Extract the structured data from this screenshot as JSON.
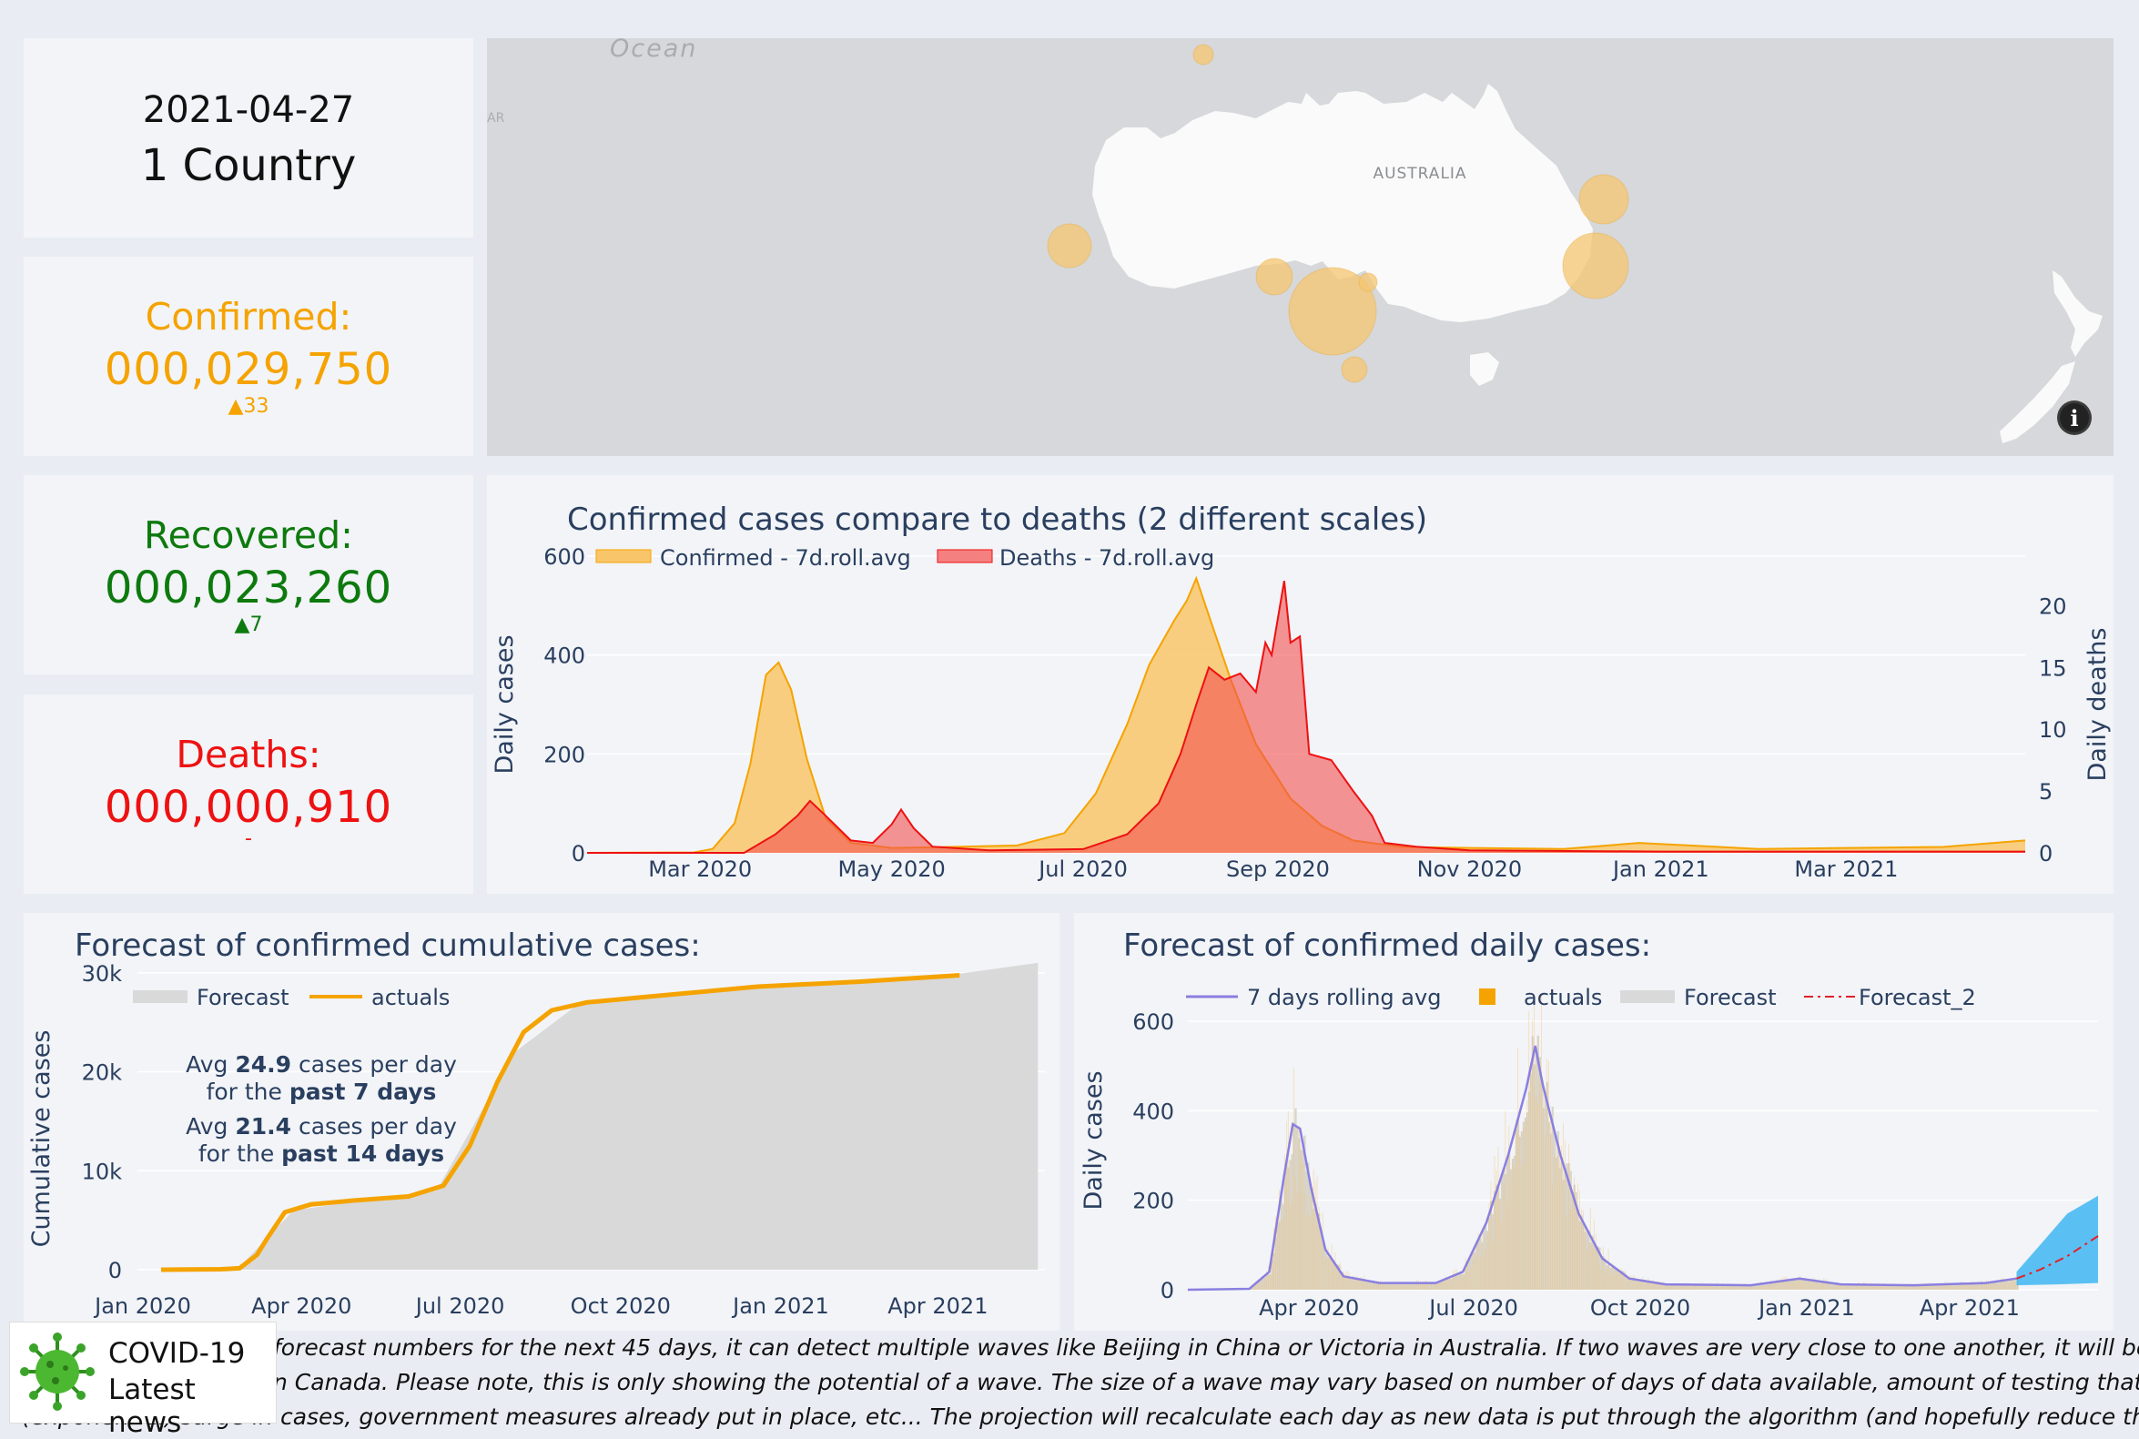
{
  "summary": {
    "date": "2021-04-27",
    "countries": "1 Country",
    "confirmed": {
      "label": "Confirmed:",
      "value": "000,029,750",
      "delta": "▲33"
    },
    "recovered": {
      "label": "Recovered:",
      "value": "000,023,260",
      "delta": "▲7"
    },
    "deaths": {
      "label": "Deaths:",
      "value": "000,000,910",
      "delta": "-"
    }
  },
  "map": {
    "ocean_label": "Ocean",
    "cut_label": "AR",
    "country_label": "AUSTRALIA",
    "info_icon": "info-icon",
    "colors": {
      "water": "#d6d8db",
      "land": "#fafafa",
      "bubble": "#f6c670"
    }
  },
  "chart_data": [
    {
      "type": "area",
      "title": "Confirmed cases compare to deaths (2 different scales)",
      "ylabel": "Daily cases",
      "y2label": "Daily deaths",
      "x_ticks": [
        "Mar 2020",
        "May 2020",
        "Jul 2020",
        "Sep 2020",
        "Nov 2020",
        "Jan 2021",
        "Mar 2021"
      ],
      "y_ticks": [
        "0",
        "200",
        "400",
        "600"
      ],
      "y2_ticks": [
        "0",
        "5",
        "10",
        "15",
        "20"
      ],
      "ylim": [
        0,
        600
      ],
      "y2lim": [
        0,
        24
      ],
      "legend_placement": "top-left",
      "series": [
        {
          "name": "Confirmed - 7d.roll.avg",
          "axis": "y",
          "color": "#f5a300",
          "points": [
            [
              "2020-01-25",
              0
            ],
            [
              "2020-02-28",
              1
            ],
            [
              "2020-03-05",
              8
            ],
            [
              "2020-03-12",
              60
            ],
            [
              "2020-03-17",
              180
            ],
            [
              "2020-03-22",
              360
            ],
            [
              "2020-03-26",
              385
            ],
            [
              "2020-03-30",
              330
            ],
            [
              "2020-04-04",
              190
            ],
            [
              "2020-04-10",
              70
            ],
            [
              "2020-04-18",
              20
            ],
            [
              "2020-05-01",
              10
            ],
            [
              "2020-05-20",
              12
            ],
            [
              "2020-06-10",
              15
            ],
            [
              "2020-06-25",
              40
            ],
            [
              "2020-07-05",
              120
            ],
            [
              "2020-07-15",
              260
            ],
            [
              "2020-07-22",
              380
            ],
            [
              "2020-07-30",
              470
            ],
            [
              "2020-08-03",
              510
            ],
            [
              "2020-08-06",
              555
            ],
            [
              "2020-08-10",
              480
            ],
            [
              "2020-08-17",
              350
            ],
            [
              "2020-08-25",
              220
            ],
            [
              "2020-09-05",
              110
            ],
            [
              "2020-09-15",
              55
            ],
            [
              "2020-09-25",
              25
            ],
            [
              "2020-10-10",
              12
            ],
            [
              "2020-11-01",
              10
            ],
            [
              "2020-12-01",
              8
            ],
            [
              "2020-12-25",
              20
            ],
            [
              "2021-01-10",
              15
            ],
            [
              "2021-02-01",
              8
            ],
            [
              "2021-03-01",
              10
            ],
            [
              "2021-04-01",
              12
            ],
            [
              "2021-04-27",
              25
            ]
          ]
        },
        {
          "name": "Deaths - 7d.roll.avg",
          "axis": "y2",
          "color": "#ee1111",
          "points": [
            [
              "2020-01-25",
              0
            ],
            [
              "2020-03-15",
              0
            ],
            [
              "2020-03-25",
              1.5
            ],
            [
              "2020-04-01",
              3
            ],
            [
              "2020-04-05",
              4.2
            ],
            [
              "2020-04-10",
              3
            ],
            [
              "2020-04-18",
              1
            ],
            [
              "2020-04-25",
              0.8
            ],
            [
              "2020-05-01",
              2.3
            ],
            [
              "2020-05-04",
              3.5
            ],
            [
              "2020-05-08",
              2
            ],
            [
              "2020-05-14",
              0.5
            ],
            [
              "2020-06-01",
              0.2
            ],
            [
              "2020-07-01",
              0.3
            ],
            [
              "2020-07-15",
              1.5
            ],
            [
              "2020-07-25",
              4
            ],
            [
              "2020-08-01",
              8
            ],
            [
              "2020-08-06",
              12
            ],
            [
              "2020-08-10",
              15
            ],
            [
              "2020-08-15",
              14
            ],
            [
              "2020-08-20",
              14.5
            ],
            [
              "2020-08-25",
              13
            ],
            [
              "2020-08-28",
              17
            ],
            [
              "2020-08-30",
              16
            ],
            [
              "2020-09-01",
              19
            ],
            [
              "2020-09-03",
              22
            ],
            [
              "2020-09-05",
              17
            ],
            [
              "2020-09-08",
              17.5
            ],
            [
              "2020-09-11",
              8
            ],
            [
              "2020-09-18",
              7.5
            ],
            [
              "2020-09-25",
              5
            ],
            [
              "2020-10-01",
              3
            ],
            [
              "2020-10-05",
              0.8
            ],
            [
              "2020-10-15",
              0.5
            ],
            [
              "2020-11-01",
              0.2
            ],
            [
              "2021-01-01",
              0.1
            ],
            [
              "2021-04-27",
              0.1
            ]
          ]
        }
      ]
    },
    {
      "type": "area",
      "title": "Forecast of confirmed cumulative cases:",
      "ylabel": "Cumulative cases",
      "x_ticks": [
        "Jan 2020",
        "Apr 2020",
        "Jul 2020",
        "Oct 2020",
        "Jan 2021",
        "Apr 2021"
      ],
      "y_ticks": [
        "0",
        "10k",
        "20k",
        "30k"
      ],
      "ylim": [
        0,
        32000
      ],
      "legend_placement": "top-left",
      "annotations": [
        {
          "text_before": "Avg ",
          "bold": "24.9",
          "text_after": " cases per day"
        },
        {
          "text_before": "for the ",
          "bold": "past 7 days",
          "text_after": ""
        },
        {
          "text_before": "Avg ",
          "bold": "21.4",
          "text_after": " cases per day"
        },
        {
          "text_before": "for the ",
          "bold": "past 14 days",
          "text_after": ""
        }
      ],
      "series": [
        {
          "name": "Forecast",
          "color": "#d9d9d9",
          "points": [
            [
              "2020-01-25",
              0
            ],
            [
              "2020-03-10",
              300
            ],
            [
              "2020-04-10",
              6000
            ],
            [
              "2020-07-01",
              8000
            ],
            [
              "2020-08-15",
              22000
            ],
            [
              "2020-09-20",
              26800
            ],
            [
              "2021-01-01",
              28700
            ],
            [
              "2021-04-27",
              29900
            ],
            [
              "2021-06-11",
              31000
            ]
          ]
        },
        {
          "name": "actuals",
          "color": "#f5a300",
          "points": [
            [
              "2020-01-25",
              0
            ],
            [
              "2020-02-28",
              50
            ],
            [
              "2020-03-10",
              150
            ],
            [
              "2020-03-20",
              1500
            ],
            [
              "2020-03-26",
              3200
            ],
            [
              "2020-04-05",
              5800
            ],
            [
              "2020-04-20",
              6600
            ],
            [
              "2020-05-15",
              7000
            ],
            [
              "2020-06-15",
              7400
            ],
            [
              "2020-07-05",
              8500
            ],
            [
              "2020-07-20",
              12500
            ],
            [
              "2020-08-05",
              19000
            ],
            [
              "2020-08-20",
              24000
            ],
            [
              "2020-09-05",
              26200
            ],
            [
              "2020-09-25",
              27000
            ],
            [
              "2020-11-01",
              27600
            ],
            [
              "2021-01-01",
              28600
            ],
            [
              "2021-03-01",
              29100
            ],
            [
              "2021-04-27",
              29750
            ]
          ]
        }
      ]
    },
    {
      "type": "bar",
      "title": "Forecast of confirmed daily cases:",
      "ylabel": "Daily cases",
      "x_ticks": [
        "Apr 2020",
        "Jul 2020",
        "Oct 2020",
        "Jan 2021",
        "Apr 2021"
      ],
      "y_ticks": [
        "0",
        "200",
        "400",
        "600"
      ],
      "ylim": [
        0,
        720
      ],
      "legend_placement": "top",
      "series": [
        {
          "name": "7 days rolling avg",
          "color": "#8a7fe0",
          "points": [
            [
              "2020-01-25",
              0
            ],
            [
              "2020-02-28",
              2
            ],
            [
              "2020-03-10",
              40
            ],
            [
              "2020-03-18",
              250
            ],
            [
              "2020-03-23",
              370
            ],
            [
              "2020-03-27",
              360
            ],
            [
              "2020-04-02",
              230
            ],
            [
              "2020-04-10",
              90
            ],
            [
              "2020-04-20",
              30
            ],
            [
              "2020-05-10",
              15
            ],
            [
              "2020-06-10",
              15
            ],
            [
              "2020-06-25",
              40
            ],
            [
              "2020-07-08",
              150
            ],
            [
              "2020-07-20",
              300
            ],
            [
              "2020-07-30",
              450
            ],
            [
              "2020-08-04",
              545
            ],
            [
              "2020-08-08",
              460
            ],
            [
              "2020-08-18",
              300
            ],
            [
              "2020-08-28",
              170
            ],
            [
              "2020-09-10",
              70
            ],
            [
              "2020-09-25",
              25
            ],
            [
              "2020-10-15",
              12
            ],
            [
              "2020-12-01",
              10
            ],
            [
              "2020-12-28",
              25
            ],
            [
              "2021-01-20",
              12
            ],
            [
              "2021-03-01",
              10
            ],
            [
              "2021-04-10",
              15
            ],
            [
              "2021-04-27",
              25
            ]
          ]
        },
        {
          "name": "actuals",
          "color": "#f5a300"
        },
        {
          "name": "Forecast",
          "color": "#d9d9d9"
        },
        {
          "name": "Forecast_2",
          "color": "#e3212b",
          "points": [
            [
              "2021-04-27",
              25
            ],
            [
              "2021-05-10",
              45
            ],
            [
              "2021-05-25",
              75
            ],
            [
              "2021-06-11",
              120
            ]
          ]
        }
      ],
      "forecast_band": {
        "color": "#3fb6f2",
        "lower": [
          [
            "2021-04-27",
            10
          ],
          [
            "2021-05-20",
            12
          ],
          [
            "2021-06-11",
            15
          ]
        ],
        "upper": [
          [
            "2021-04-27",
            40
          ],
          [
            "2021-05-10",
            100
          ],
          [
            "2021-05-25",
            170
          ],
          [
            "2021-06-11",
            210
          ]
        ]
      }
    }
  ],
  "footer": {
    "line1": "forecast numbers for the next 45 days, it can detect multiple waves like Beijing in China or Victoria in Australia. If two waves are very close to one another, it will be counted as",
    "line2": "n Canada. Please note, this is only showing the potential of a wave. The size of a wave may vary based on number of days of data available, amount of testing that creates quick",
    "line3": "(exponential) surge in cases, government measures already put in place, etc... The projection will recalculate each day as new data is put through the algorithm (and hopefully reduce the wave)."
  },
  "badge": {
    "icon": "virus-icon",
    "line1": "COVID-19",
    "line2": "Latest news"
  }
}
